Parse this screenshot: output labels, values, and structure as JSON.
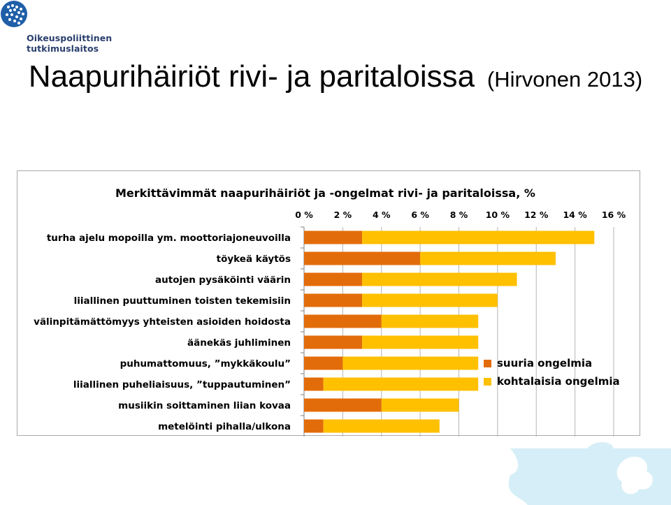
{
  "logo": {
    "line1": "Oikeuspoliittinen",
    "line2": "tutkimuslaitos"
  },
  "slide": {
    "title_main": "Naapurihäiriöt rivi- ja paritaloissa",
    "title_cite": "(Hirvonen 2013)"
  },
  "colors": {
    "suuria": "#e36c0a",
    "kohtalaisia": "#ffc000",
    "logo_blue": "#1f5fa8",
    "puzzle_blue": "#d6eef7"
  },
  "chart_data": {
    "type": "bar",
    "orientation": "horizontal",
    "stacked": true,
    "title": "Merkittävimmät naapurihäiriöt ja -ongelmat rivi- ja paritaloissa, %",
    "categories": [
      "turha ajelu mopoilla ym. moottoriajoneuvoilla",
      "töykeä käytös",
      "autojen pysäköinti väärin",
      "liiallinen puuttuminen toisten tekemisiin",
      "välinpitämättömyys yhteisten asioiden hoidosta",
      "äänekäs juhliminen",
      "puhumattomuus, ”mykkäkoulu”",
      "liiallinen puheliaisuus, ”tuppautuminen”",
      "musiikin soittaminen liian kovaa",
      "metelöinti pihalla/ulkona"
    ],
    "series": [
      {
        "name": "suuria ongelmia",
        "values": [
          3,
          6,
          3,
          3,
          4,
          3,
          2,
          1,
          4,
          1
        ]
      },
      {
        "name": "kohtalaisia ongelmia",
        "values": [
          12,
          7,
          8,
          7,
          5,
          6,
          7,
          8,
          4,
          6
        ]
      }
    ],
    "xlim": [
      0,
      16
    ],
    "xticks": [
      0,
      2,
      4,
      6,
      8,
      10,
      12,
      14,
      16
    ],
    "xtick_labels": [
      "0 %",
      "2 %",
      "4 %",
      "6 %",
      "8 %",
      "10 %",
      "12 %",
      "14 %",
      "16 %"
    ],
    "x_axis_position": "top",
    "grid": true,
    "legend": "right"
  }
}
